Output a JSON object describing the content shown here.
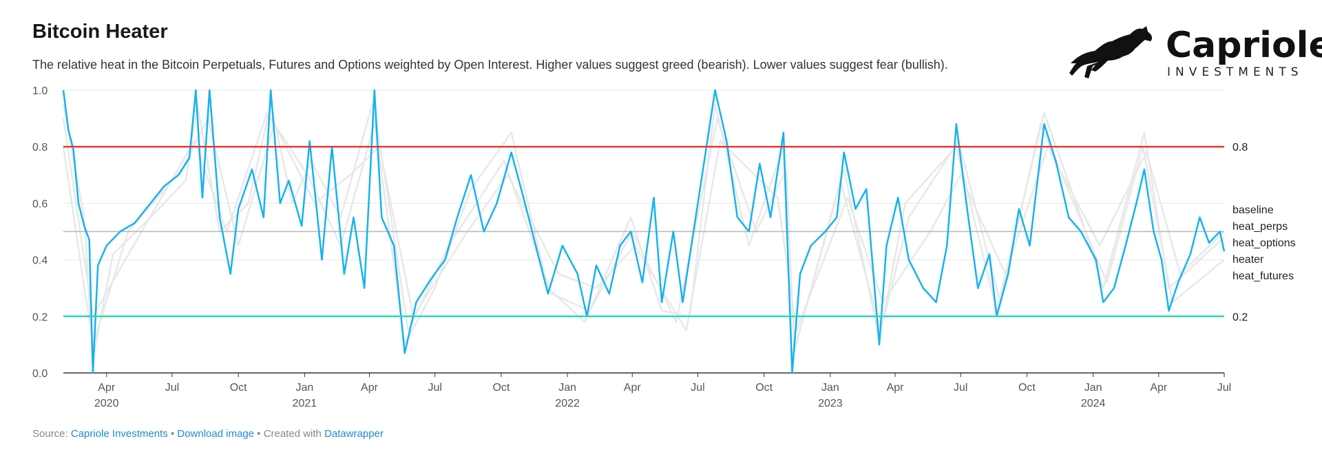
{
  "header": {
    "title": "Bitcoin Heater",
    "subtitle": "The relative heat in the Bitcoin Perpetuals, Futures and Options weighted by Open Interest. Higher values suggest greed (bearish). Lower values suggest fear (bullish)."
  },
  "logo": {
    "name": "Capriole",
    "sub": "INVESTMENTS",
    "icon": "horse-icon"
  },
  "footer": {
    "source_prefix": "Source: ",
    "source_link": "Capriole Investments",
    "sep1": " • ",
    "download_link": "Download image",
    "sep2": " • Created with ",
    "tool_link": "Datawrapper"
  },
  "colors": {
    "heater": "#16b2ef",
    "background_series": "#e8e8e8",
    "upper_line": "#e53935",
    "lower_line": "#2ed8b6",
    "baseline": "#b5b5b5",
    "grid": "#e6e6e6"
  },
  "chart_data": {
    "type": "line",
    "ylim": [
      0,
      1
    ],
    "y_ticks": [
      "0.0",
      "0.2",
      "0.4",
      "0.6",
      "0.8",
      "1.0"
    ],
    "x_ticks": [
      {
        "label": "Apr",
        "year": "2020",
        "date": "2020-04-01"
      },
      {
        "label": "Jul",
        "year": "",
        "date": "2020-07-01"
      },
      {
        "label": "Oct",
        "year": "",
        "date": "2020-10-01"
      },
      {
        "label": "Jan",
        "year": "2021",
        "date": "2021-01-01"
      },
      {
        "label": "Apr",
        "year": "",
        "date": "2021-04-01"
      },
      {
        "label": "Jul",
        "year": "",
        "date": "2021-07-01"
      },
      {
        "label": "Oct",
        "year": "",
        "date": "2021-10-01"
      },
      {
        "label": "Jan",
        "year": "2022",
        "date": "2022-01-01"
      },
      {
        "label": "Apr",
        "year": "",
        "date": "2022-04-01"
      },
      {
        "label": "Jul",
        "year": "",
        "date": "2022-07-01"
      },
      {
        "label": "Oct",
        "year": "",
        "date": "2022-10-01"
      },
      {
        "label": "Jan",
        "year": "2023",
        "date": "2023-01-01"
      },
      {
        "label": "Apr",
        "year": "",
        "date": "2023-04-01"
      },
      {
        "label": "Jul",
        "year": "",
        "date": "2023-07-01"
      },
      {
        "label": "Oct",
        "year": "",
        "date": "2023-10-01"
      },
      {
        "label": "Jan",
        "year": "2024",
        "date": "2024-01-01"
      },
      {
        "label": "Apr",
        "year": "",
        "date": "2024-04-01"
      },
      {
        "label": "Jul",
        "year": "",
        "date": "2024-07-01"
      }
    ],
    "x_range": [
      "2020-02-01",
      "2024-07-01"
    ],
    "reference_lines": [
      {
        "label": "0.8",
        "value": 0.8
      },
      {
        "label": "0.2",
        "value": 0.2
      }
    ],
    "baseline_value": 0.5,
    "legend": [
      "baseline",
      "heat_perps",
      "heat_options",
      "heater",
      "heat_futures"
    ],
    "series": [
      {
        "name": "heater",
        "points": [
          [
            "2020-02-01",
            1.0
          ],
          [
            "2020-02-08",
            0.86
          ],
          [
            "2020-02-15",
            0.79
          ],
          [
            "2020-02-22",
            0.6
          ],
          [
            "2020-03-01",
            0.52
          ],
          [
            "2020-03-08",
            0.47
          ],
          [
            "2020-03-13",
            0.0
          ],
          [
            "2020-03-20",
            0.38
          ],
          [
            "2020-04-01",
            0.45
          ],
          [
            "2020-04-20",
            0.5
          ],
          [
            "2020-05-10",
            0.53
          ],
          [
            "2020-06-01",
            0.6
          ],
          [
            "2020-06-20",
            0.66
          ],
          [
            "2020-07-10",
            0.7
          ],
          [
            "2020-07-25",
            0.76
          ],
          [
            "2020-08-03",
            1.0
          ],
          [
            "2020-08-12",
            0.62
          ],
          [
            "2020-08-22",
            1.0
          ],
          [
            "2020-09-05",
            0.55
          ],
          [
            "2020-09-20",
            0.35
          ],
          [
            "2020-10-01",
            0.58
          ],
          [
            "2020-10-20",
            0.72
          ],
          [
            "2020-11-05",
            0.55
          ],
          [
            "2020-11-15",
            1.0
          ],
          [
            "2020-11-28",
            0.6
          ],
          [
            "2020-12-10",
            0.68
          ],
          [
            "2020-12-28",
            0.52
          ],
          [
            "2021-01-08",
            0.82
          ],
          [
            "2021-01-25",
            0.4
          ],
          [
            "2021-02-08",
            0.8
          ],
          [
            "2021-02-25",
            0.35
          ],
          [
            "2021-03-10",
            0.55
          ],
          [
            "2021-03-25",
            0.3
          ],
          [
            "2021-04-08",
            1.0
          ],
          [
            "2021-04-18",
            0.55
          ],
          [
            "2021-05-05",
            0.45
          ],
          [
            "2021-05-20",
            0.07
          ],
          [
            "2021-06-05",
            0.25
          ],
          [
            "2021-06-25",
            0.33
          ],
          [
            "2021-07-15",
            0.4
          ],
          [
            "2021-08-01",
            0.55
          ],
          [
            "2021-08-20",
            0.7
          ],
          [
            "2021-09-07",
            0.5
          ],
          [
            "2021-09-25",
            0.6
          ],
          [
            "2021-10-15",
            0.78
          ],
          [
            "2021-11-01",
            0.62
          ],
          [
            "2021-11-15",
            0.48
          ],
          [
            "2021-12-05",
            0.28
          ],
          [
            "2021-12-25",
            0.45
          ],
          [
            "2022-01-15",
            0.35
          ],
          [
            "2022-01-28",
            0.2
          ],
          [
            "2022-02-10",
            0.38
          ],
          [
            "2022-02-28",
            0.28
          ],
          [
            "2022-03-15",
            0.45
          ],
          [
            "2022-03-30",
            0.5
          ],
          [
            "2022-04-15",
            0.32
          ],
          [
            "2022-05-01",
            0.62
          ],
          [
            "2022-05-12",
            0.25
          ],
          [
            "2022-05-28",
            0.5
          ],
          [
            "2022-06-10",
            0.25
          ],
          [
            "2022-06-25",
            0.5
          ],
          [
            "2022-07-10",
            0.75
          ],
          [
            "2022-07-25",
            1.0
          ],
          [
            "2022-08-10",
            0.82
          ],
          [
            "2022-08-25",
            0.55
          ],
          [
            "2022-09-10",
            0.5
          ],
          [
            "2022-09-25",
            0.74
          ],
          [
            "2022-10-10",
            0.55
          ],
          [
            "2022-10-28",
            0.85
          ],
          [
            "2022-11-09",
            0.0
          ],
          [
            "2022-11-20",
            0.35
          ],
          [
            "2022-12-05",
            0.45
          ],
          [
            "2022-12-25",
            0.5
          ],
          [
            "2023-01-10",
            0.55
          ],
          [
            "2023-01-20",
            0.78
          ],
          [
            "2023-02-05",
            0.58
          ],
          [
            "2023-02-20",
            0.65
          ],
          [
            "2023-03-10",
            0.1
          ],
          [
            "2023-03-20",
            0.45
          ],
          [
            "2023-04-05",
            0.62
          ],
          [
            "2023-04-20",
            0.4
          ],
          [
            "2023-05-10",
            0.3
          ],
          [
            "2023-05-28",
            0.25
          ],
          [
            "2023-06-12",
            0.45
          ],
          [
            "2023-06-25",
            0.88
          ],
          [
            "2023-07-10",
            0.58
          ],
          [
            "2023-07-25",
            0.3
          ],
          [
            "2023-08-10",
            0.42
          ],
          [
            "2023-08-20",
            0.2
          ],
          [
            "2023-09-05",
            0.35
          ],
          [
            "2023-09-20",
            0.58
          ],
          [
            "2023-10-05",
            0.45
          ],
          [
            "2023-10-25",
            0.88
          ],
          [
            "2023-11-10",
            0.75
          ],
          [
            "2023-11-28",
            0.55
          ],
          [
            "2023-12-15",
            0.5
          ],
          [
            "2024-01-05",
            0.4
          ],
          [
            "2024-01-15",
            0.25
          ],
          [
            "2024-01-30",
            0.3
          ],
          [
            "2024-02-15",
            0.45
          ],
          [
            "2024-03-01",
            0.6
          ],
          [
            "2024-03-12",
            0.72
          ],
          [
            "2024-03-25",
            0.5
          ],
          [
            "2024-04-05",
            0.4
          ],
          [
            "2024-04-15",
            0.22
          ],
          [
            "2024-04-28",
            0.32
          ],
          [
            "2024-05-15",
            0.42
          ],
          [
            "2024-05-28",
            0.55
          ],
          [
            "2024-06-10",
            0.46
          ],
          [
            "2024-06-25",
            0.5
          ],
          [
            "2024-07-01",
            0.43
          ]
        ]
      },
      {
        "name": "heat_perps",
        "points": [
          [
            "2020-02-01",
            0.95
          ],
          [
            "2020-03-01",
            0.55
          ],
          [
            "2020-03-13",
            0.05
          ],
          [
            "2020-04-10",
            0.42
          ],
          [
            "2020-06-01",
            0.55
          ],
          [
            "2020-07-20",
            0.68
          ],
          [
            "2020-08-05",
            0.95
          ],
          [
            "2020-09-05",
            0.5
          ],
          [
            "2020-10-15",
            0.6
          ],
          [
            "2020-11-15",
            0.95
          ],
          [
            "2020-12-15",
            0.6
          ],
          [
            "2021-01-10",
            0.75
          ],
          [
            "2021-02-20",
            0.55
          ],
          [
            "2021-04-05",
            0.95
          ],
          [
            "2021-05-20",
            0.1
          ],
          [
            "2021-07-01",
            0.3
          ],
          [
            "2021-08-20",
            0.65
          ],
          [
            "2021-10-15",
            0.85
          ],
          [
            "2021-12-05",
            0.3
          ],
          [
            "2022-01-25",
            0.18
          ],
          [
            "2022-03-30",
            0.55
          ],
          [
            "2022-05-12",
            0.22
          ],
          [
            "2022-06-20",
            0.2
          ],
          [
            "2022-07-25",
            0.95
          ],
          [
            "2022-09-10",
            0.45
          ],
          [
            "2022-10-28",
            0.8
          ],
          [
            "2022-11-09",
            0.05
          ],
          [
            "2023-01-20",
            0.72
          ],
          [
            "2023-03-10",
            0.12
          ],
          [
            "2023-04-15",
            0.6
          ],
          [
            "2023-06-25",
            0.8
          ],
          [
            "2023-08-20",
            0.22
          ],
          [
            "2023-10-25",
            0.92
          ],
          [
            "2023-12-15",
            0.55
          ],
          [
            "2024-01-15",
            0.3
          ],
          [
            "2024-03-12",
            0.85
          ],
          [
            "2024-04-15",
            0.3
          ],
          [
            "2024-07-01",
            0.48
          ]
        ]
      },
      {
        "name": "heat_options",
        "points": [
          [
            "2020-02-01",
            0.8
          ],
          [
            "2020-03-13",
            0.1
          ],
          [
            "2020-05-01",
            0.5
          ],
          [
            "2020-07-15",
            0.72
          ],
          [
            "2020-08-20",
            0.9
          ],
          [
            "2020-10-01",
            0.45
          ],
          [
            "2020-11-20",
            0.88
          ],
          [
            "2021-01-15",
            0.6
          ],
          [
            "2021-03-05",
            0.7
          ],
          [
            "2021-04-15",
            0.8
          ],
          [
            "2021-06-01",
            0.2
          ],
          [
            "2021-08-15",
            0.5
          ],
          [
            "2021-10-10",
            0.7
          ],
          [
            "2021-12-20",
            0.35
          ],
          [
            "2022-02-10",
            0.3
          ],
          [
            "2022-04-05",
            0.45
          ],
          [
            "2022-06-15",
            0.15
          ],
          [
            "2022-08-01",
            0.82
          ],
          [
            "2022-10-20",
            0.62
          ],
          [
            "2022-11-15",
            0.15
          ],
          [
            "2023-01-25",
            0.62
          ],
          [
            "2023-03-15",
            0.25
          ],
          [
            "2023-05-20",
            0.5
          ],
          [
            "2023-07-01",
            0.7
          ],
          [
            "2023-09-01",
            0.35
          ],
          [
            "2023-10-30",
            0.8
          ],
          [
            "2024-01-10",
            0.45
          ],
          [
            "2024-03-15",
            0.78
          ],
          [
            "2024-05-01",
            0.35
          ],
          [
            "2024-07-01",
            0.5
          ]
        ]
      },
      {
        "name": "heat_futures",
        "points": [
          [
            "2020-02-01",
            0.9
          ],
          [
            "2020-03-13",
            0.2
          ],
          [
            "2020-05-15",
            0.48
          ],
          [
            "2020-08-01",
            0.82
          ],
          [
            "2020-09-15",
            0.5
          ],
          [
            "2020-11-10",
            0.92
          ],
          [
            "2021-01-05",
            0.7
          ],
          [
            "2021-02-20",
            0.45
          ],
          [
            "2021-04-10",
            0.9
          ],
          [
            "2021-05-25",
            0.15
          ],
          [
            "2021-07-20",
            0.45
          ],
          [
            "2021-10-05",
            0.75
          ],
          [
            "2021-12-10",
            0.28
          ],
          [
            "2022-02-01",
            0.22
          ],
          [
            "2022-04-01",
            0.5
          ],
          [
            "2022-06-01",
            0.18
          ],
          [
            "2022-07-28",
            0.9
          ],
          [
            "2022-09-20",
            0.5
          ],
          [
            "2022-11-01",
            0.72
          ],
          [
            "2022-11-12",
            0.08
          ],
          [
            "2023-01-15",
            0.68
          ],
          [
            "2023-03-12",
            0.15
          ],
          [
            "2023-04-20",
            0.55
          ],
          [
            "2023-06-28",
            0.82
          ],
          [
            "2023-08-25",
            0.25
          ],
          [
            "2023-10-20",
            0.88
          ],
          [
            "2024-01-20",
            0.32
          ],
          [
            "2024-03-10",
            0.8
          ],
          [
            "2024-04-20",
            0.25
          ],
          [
            "2024-07-01",
            0.4
          ]
        ]
      }
    ]
  }
}
